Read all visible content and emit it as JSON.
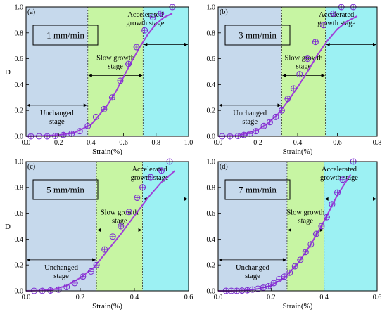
{
  "colors": {
    "unchanged_zone": "#c6d9ec",
    "slow_zone": "#c7f5a3",
    "accelerated_zone": "#9cf1f3",
    "fit_line": "#a040d8",
    "marker": "#7a2ad0",
    "axis": "#000000"
  },
  "legend": {
    "marker": "circle-with-cross",
    "fit": "line"
  },
  "chart_data": [
    {
      "type": "scatter",
      "panel_label": "(a)",
      "rate_label": "1 mm/min",
      "xlabel": "Strain(%)",
      "ylabel": "D",
      "xlim": [
        0.0,
        1.0
      ],
      "ylim": [
        0.0,
        1.0
      ],
      "xticks": [
        "0.0",
        "0.2",
        "0.4",
        "0.6",
        "0.8",
        "1.0"
      ],
      "yticks": [
        "0.0",
        "0.2",
        "0.4",
        "0.6",
        "0.8",
        "1.0"
      ],
      "grid": false,
      "stage_boundaries": [
        0.38,
        0.72
      ],
      "stages": [
        "Unchanged\nstage",
        "Slow growth\nstage",
        "Accelerated\ngrowth stage"
      ],
      "series": [
        {
          "x": [
            0.03,
            0.08,
            0.13,
            0.18,
            0.23,
            0.28,
            0.33,
            0.38,
            0.43,
            0.48,
            0.53,
            0.58,
            0.63,
            0.68,
            0.73,
            0.78,
            0.83,
            0.9
          ],
          "y": [
            0.0,
            0.0,
            0.0,
            0.003,
            0.01,
            0.02,
            0.04,
            0.08,
            0.15,
            0.21,
            0.3,
            0.43,
            0.56,
            0.69,
            0.82,
            0.92,
            0.95,
            1.0
          ]
        }
      ],
      "fit": {
        "x": [
          0.0,
          0.1,
          0.2,
          0.3,
          0.4,
          0.5,
          0.55,
          0.6,
          0.65,
          0.7,
          0.75,
          0.8,
          0.85,
          0.9
        ],
        "y": [
          0.0,
          0.003,
          0.01,
          0.03,
          0.09,
          0.24,
          0.34,
          0.46,
          0.58,
          0.69,
          0.79,
          0.87,
          0.92,
          0.95
        ]
      }
    },
    {
      "type": "scatter",
      "panel_label": "(b)",
      "rate_label": "3 mm/min",
      "xlabel": "Strain(%)",
      "ylabel": "",
      "xlim": [
        0.0,
        0.8
      ],
      "ylim": [
        0.0,
        1.0
      ],
      "xticks": [
        "0.0",
        "0.2",
        "0.4",
        "0.6",
        "0.8"
      ],
      "yticks": [
        "0.0",
        "0.2",
        "0.4",
        "0.6",
        "0.8",
        "1.0"
      ],
      "grid": false,
      "stage_boundaries": [
        0.32,
        0.54
      ],
      "stages": [
        "Unchanged\nstage",
        "Slow growth\nstage",
        "Accelerated\ngrowth stage"
      ],
      "series": [
        {
          "x": [
            0.02,
            0.06,
            0.1,
            0.13,
            0.16,
            0.19,
            0.23,
            0.26,
            0.29,
            0.32,
            0.35,
            0.38,
            0.41,
            0.45,
            0.49,
            0.53,
            0.58,
            0.62,
            0.68
          ],
          "y": [
            0.0,
            0.0,
            0.003,
            0.01,
            0.02,
            0.04,
            0.08,
            0.11,
            0.15,
            0.2,
            0.29,
            0.37,
            0.48,
            0.6,
            0.73,
            0.86,
            0.95,
            1.0,
            1.0
          ]
        }
      ],
      "fit": {
        "x": [
          0.0,
          0.1,
          0.2,
          0.25,
          0.3,
          0.35,
          0.4,
          0.45,
          0.5,
          0.55,
          0.6,
          0.65,
          0.7
        ],
        "y": [
          0.0,
          0.005,
          0.05,
          0.1,
          0.17,
          0.27,
          0.38,
          0.5,
          0.63,
          0.74,
          0.83,
          0.89,
          0.93
        ]
      }
    },
    {
      "type": "scatter",
      "panel_label": "(c)",
      "rate_label": "5 mm/min",
      "xlabel": "Strain(%)",
      "ylabel": "D",
      "xlim": [
        0.0,
        0.6
      ],
      "ylim": [
        0.0,
        1.0
      ],
      "xticks": [
        "0.0",
        "0.2",
        "0.4",
        "0.6"
      ],
      "yticks": [
        "0.0",
        "0.2",
        "0.4",
        "0.6",
        "0.8",
        "1.0"
      ],
      "grid": false,
      "stage_boundaries": [
        0.26,
        0.43
      ],
      "stages": [
        "Unchanged\nstage",
        "Slow growth\nstage",
        "Accelerated\ngrowth stage"
      ],
      "series": [
        {
          "x": [
            0.03,
            0.06,
            0.09,
            0.12,
            0.15,
            0.18,
            0.21,
            0.24,
            0.26,
            0.29,
            0.32,
            0.35,
            0.38,
            0.41,
            0.43,
            0.46,
            0.5,
            0.53
          ],
          "y": [
            0.0,
            0.0,
            0.003,
            0.01,
            0.03,
            0.06,
            0.11,
            0.15,
            0.2,
            0.32,
            0.42,
            0.5,
            0.61,
            0.72,
            0.8,
            0.88,
            0.93,
            1.0
          ]
        }
      ],
      "fit": {
        "x": [
          0.0,
          0.05,
          0.1,
          0.15,
          0.2,
          0.25,
          0.3,
          0.35,
          0.4,
          0.45,
          0.5,
          0.55
        ],
        "y": [
          0.0,
          0.002,
          0.01,
          0.04,
          0.1,
          0.18,
          0.31,
          0.44,
          0.58,
          0.72,
          0.84,
          0.93
        ]
      }
    },
    {
      "type": "scatter",
      "panel_label": "(d)",
      "rate_label": "7 mm/min",
      "xlabel": "Strain(%)",
      "ylabel": "",
      "xlim": [
        0.0,
        0.6
      ],
      "ylim": [
        0.0,
        1.0
      ],
      "xticks": [
        "0.0",
        "0.2",
        "0.4",
        "0.6"
      ],
      "yticks": [
        "0.0",
        "0.2",
        "0.4",
        "0.6",
        "0.8",
        "1.0"
      ],
      "grid": false,
      "stage_boundaries": [
        0.26,
        0.4
      ],
      "stages": [
        "Unchanged\nstage",
        "Slow growth\nstage",
        "Accelerated\ngrowth stage"
      ],
      "series": [
        {
          "x": [
            0.03,
            0.05,
            0.07,
            0.09,
            0.11,
            0.13,
            0.15,
            0.17,
            0.19,
            0.21,
            0.23,
            0.25,
            0.27,
            0.29,
            0.31,
            0.33,
            0.35,
            0.37,
            0.39,
            0.41,
            0.43,
            0.45,
            0.47,
            0.51
          ],
          "y": [
            0.0,
            0.0,
            0.0,
            0.002,
            0.005,
            0.01,
            0.016,
            0.024,
            0.035,
            0.06,
            0.09,
            0.11,
            0.14,
            0.19,
            0.24,
            0.3,
            0.36,
            0.44,
            0.5,
            0.57,
            0.67,
            0.76,
            0.86,
            1.0
          ]
        }
      ],
      "fit": {
        "x": [
          0.0,
          0.05,
          0.1,
          0.15,
          0.2,
          0.25,
          0.3,
          0.35,
          0.4,
          0.45,
          0.5
        ],
        "y": [
          0.0,
          0.0,
          0.003,
          0.015,
          0.04,
          0.1,
          0.21,
          0.36,
          0.54,
          0.74,
          0.9
        ]
      }
    }
  ]
}
